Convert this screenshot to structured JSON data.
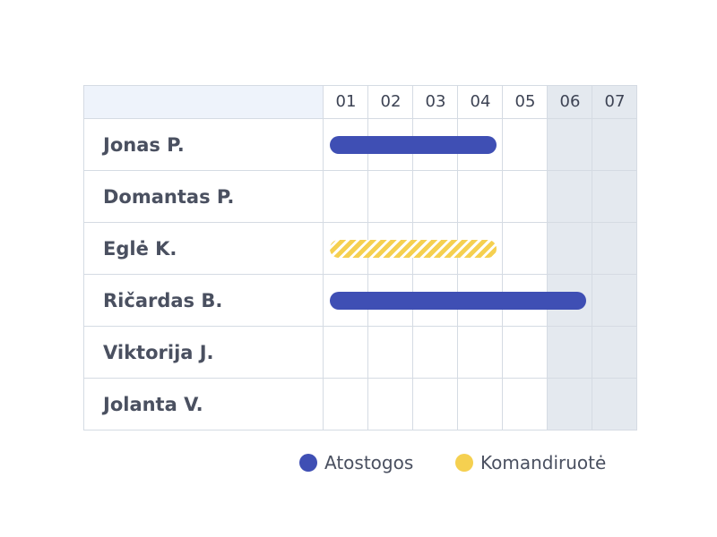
{
  "days": [
    "01",
    "02",
    "03",
    "04",
    "05",
    "06",
    "07"
  ],
  "weekend_days": [
    "06",
    "07"
  ],
  "people": [
    {
      "name": "Jonas P."
    },
    {
      "name": "Domantas P."
    },
    {
      "name": "Eglė K."
    },
    {
      "name": "Ričardas B."
    },
    {
      "name": "Viktorija J."
    },
    {
      "name": "Jolanta V."
    }
  ],
  "bars": [
    {
      "person": "Jonas P.",
      "type": "Atostogos",
      "start_day": "01",
      "end_day": "04"
    },
    {
      "person": "Eglė K.",
      "type": "Komandiruotė",
      "start_day": "01",
      "end_day": "04"
    },
    {
      "person": "Ričardas B.",
      "type": "Atostogos",
      "start_day": "01",
      "end_day": "06"
    }
  ],
  "legend": {
    "vacation_label": "Atostogos",
    "trip_label": "Komandiruotė"
  },
  "colors": {
    "vacation": "#3f4fb4",
    "trip": "#f5d050",
    "header_bg": "#eef3fb",
    "weekend_bg": "#e4e9ef",
    "grid_line": "#d5dbe3"
  }
}
